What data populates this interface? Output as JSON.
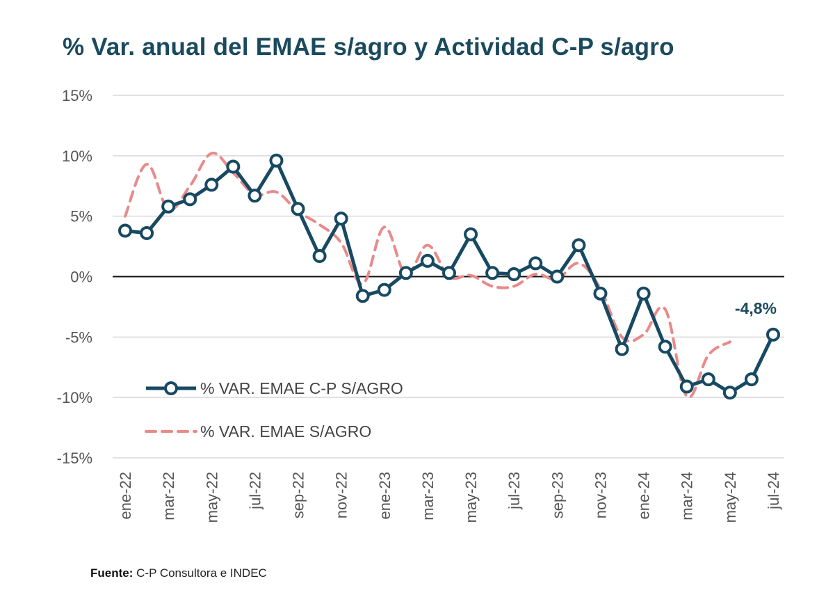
{
  "title": "% Var. anual del EMAE s/agro y Actividad C-P s/agro",
  "source": {
    "label": "Fuente:",
    "text": "C-P Consultora e INDEC"
  },
  "colors": {
    "series1": "#174a62",
    "series2": "#e88a8a",
    "grid": "#d9d9d9",
    "zero": "#111111"
  },
  "chart_data": {
    "type": "line",
    "title": "% Var. anual del EMAE s/agro y Actividad C-P s/agro",
    "xlabel": "",
    "ylabel": "",
    "ylim": [
      -15,
      15
    ],
    "yticks": [
      15,
      10,
      5,
      0,
      -5,
      -10,
      -15
    ],
    "ytick_labels": [
      "15%",
      "10%",
      "5%",
      "0%",
      "-5%",
      "-10%",
      "-15%"
    ],
    "x": [
      "ene-22",
      "feb-22",
      "mar-22",
      "abr-22",
      "may-22",
      "jun-22",
      "jul-22",
      "ago-22",
      "sep-22",
      "oct-22",
      "nov-22",
      "dic-22",
      "ene-23",
      "feb-23",
      "mar-23",
      "abr-23",
      "may-23",
      "jun-23",
      "jul-23",
      "ago-23",
      "sep-23",
      "oct-23",
      "nov-23",
      "dic-23",
      "ene-24",
      "feb-24",
      "mar-24",
      "abr-24",
      "may-24",
      "jun-24",
      "jul-24"
    ],
    "xtick_labels": [
      "ene-22",
      "mar-22",
      "may-22",
      "jul-22",
      "sep-22",
      "nov-22",
      "ene-23",
      "mar-23",
      "may-23",
      "jul-23",
      "sep-23",
      "nov-23",
      "ene-24",
      "mar-24",
      "may-24",
      "jul-24"
    ],
    "series": [
      {
        "name": "% VAR. EMAE C-P S/AGRO",
        "style": "solid-markers",
        "values": [
          3.8,
          3.6,
          5.8,
          6.4,
          7.6,
          9.1,
          6.7,
          9.6,
          5.6,
          1.7,
          4.8,
          -1.6,
          -1.1,
          0.3,
          1.3,
          0.3,
          3.5,
          0.3,
          0.2,
          1.1,
          0.0,
          2.6,
          -1.4,
          -6.0,
          -1.4,
          -5.8,
          -9.1,
          -8.5,
          -9.6,
          -8.5,
          -4.8
        ]
      },
      {
        "name": "% VAR. EMAE S/AGRO",
        "style": "dashed",
        "values": [
          5.0,
          9.3,
          5.6,
          7.5,
          10.2,
          8.6,
          6.8,
          7.0,
          5.4,
          4.3,
          2.8,
          -0.6,
          4.1,
          0.2,
          2.6,
          0.0,
          0.1,
          -0.8,
          -0.8,
          0.2,
          -0.2,
          1.1,
          -1.0,
          -5.0,
          -4.8,
          -2.7,
          -9.9,
          -6.5,
          -5.4,
          null,
          null
        ]
      }
    ],
    "annotations": [
      {
        "x": "jul-24",
        "text": "-4,8%"
      }
    ],
    "legend": "lower-left",
    "grid": true
  }
}
